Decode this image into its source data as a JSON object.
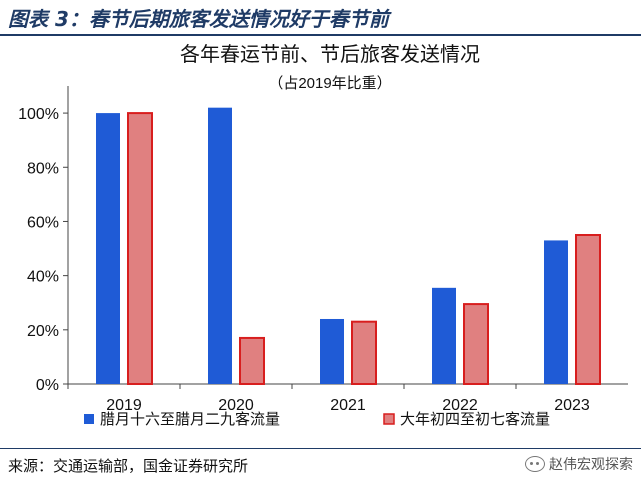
{
  "figure": {
    "title": "图表 3：春节后期旅客发送情况好于春节前",
    "source": "来源：交通运输部，国金证券研究所",
    "watermark": "赵伟宏观探索"
  },
  "colors": {
    "series1_fill": "#1f5bd6",
    "series2_fill": "#e08080",
    "series2_stroke": "#d81e1e",
    "header_rule": "#1f3b66"
  },
  "icons": {
    "watermark": "wechat-icon"
  },
  "chart_data": {
    "type": "bar",
    "title": "各年春运节前、节后旅客发送情况",
    "subtitle": "（占2019年比重）",
    "categories": [
      "2019",
      "2020",
      "2021",
      "2022",
      "2023"
    ],
    "series": [
      {
        "name": "腊月十六至腊月二九客流量",
        "values": [
          100,
          102,
          24,
          35.5,
          53
        ]
      },
      {
        "name": "大年初四至初七客流量",
        "values": [
          100,
          17,
          23,
          29.5,
          55
        ]
      }
    ],
    "y_ticks": [
      0,
      20,
      40,
      60,
      80,
      100
    ],
    "y_tick_labels": [
      "0%",
      "20%",
      "40%",
      "60%",
      "80%",
      "100%"
    ],
    "ylim": [
      0,
      110
    ],
    "xlabel": "",
    "ylabel": "",
    "grid": false,
    "legend_position": "bottom"
  }
}
